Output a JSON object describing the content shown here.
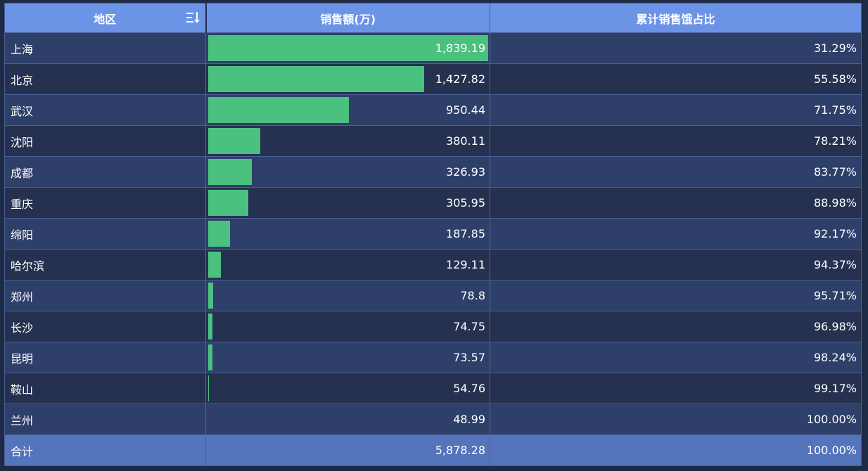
{
  "header": {
    "region": "地区",
    "sales": "销售额(万)",
    "cum_pct": "累计销售饿占比"
  },
  "rows": [
    {
      "region": "上海",
      "sales": "1,839.19",
      "cum_pct": "31.29%"
    },
    {
      "region": "北京",
      "sales": "1,427.82",
      "cum_pct": "55.58%"
    },
    {
      "region": "武汉",
      "sales": "950.44",
      "cum_pct": "71.75%"
    },
    {
      "region": "沈阳",
      "sales": "380.11",
      "cum_pct": "78.21%"
    },
    {
      "region": "成都",
      "sales": "326.93",
      "cum_pct": "83.77%"
    },
    {
      "region": "重庆",
      "sales": "305.95",
      "cum_pct": "88.98%"
    },
    {
      "region": "绵阳",
      "sales": "187.85",
      "cum_pct": "92.17%"
    },
    {
      "region": "哈尔滨",
      "sales": "129.11",
      "cum_pct": "94.37%"
    },
    {
      "region": "郑州",
      "sales": "78.8",
      "cum_pct": "95.71%"
    },
    {
      "region": "长沙",
      "sales": "74.75",
      "cum_pct": "96.98%"
    },
    {
      "region": "昆明",
      "sales": "73.57",
      "cum_pct": "98.24%"
    },
    {
      "region": "鞍山",
      "sales": "54.76",
      "cum_pct": "99.17%"
    },
    {
      "region": "兰州",
      "sales": "48.99",
      "cum_pct": "100.00%"
    }
  ],
  "footer": {
    "label": "合计",
    "sales": "5,878.28",
    "cum_pct": "100.00%"
  },
  "chart_data": {
    "type": "table",
    "columns": [
      "地区",
      "销售额(万)",
      "累计销售饿占比"
    ],
    "bar_column": "销售额(万)",
    "bar_range": [
      48.99,
      1839.19
    ],
    "categories": [
      "上海",
      "北京",
      "武汉",
      "沈阳",
      "成都",
      "重庆",
      "绵阳",
      "哈尔滨",
      "郑州",
      "长沙",
      "昆明",
      "鞍山",
      "兰州"
    ],
    "values": [
      1839.19,
      1427.82,
      950.44,
      380.11,
      326.93,
      305.95,
      187.85,
      129.11,
      78.8,
      74.75,
      73.57,
      54.76,
      48.99
    ],
    "cumulative_pct": [
      31.29,
      55.58,
      71.75,
      78.21,
      83.77,
      88.98,
      92.17,
      94.37,
      95.71,
      96.98,
      98.24,
      99.17,
      100.0
    ],
    "total": 5878.28,
    "total_pct": 100.0
  },
  "colors": {
    "background": "#1f2a44",
    "header_bg": "#6b93e6",
    "row_odd": "#2e3f6a",
    "row_even": "#263150",
    "bar": "#4bc17f",
    "footer_bg": "#5474bb"
  },
  "icons": {
    "sort": "sort-icon"
  }
}
